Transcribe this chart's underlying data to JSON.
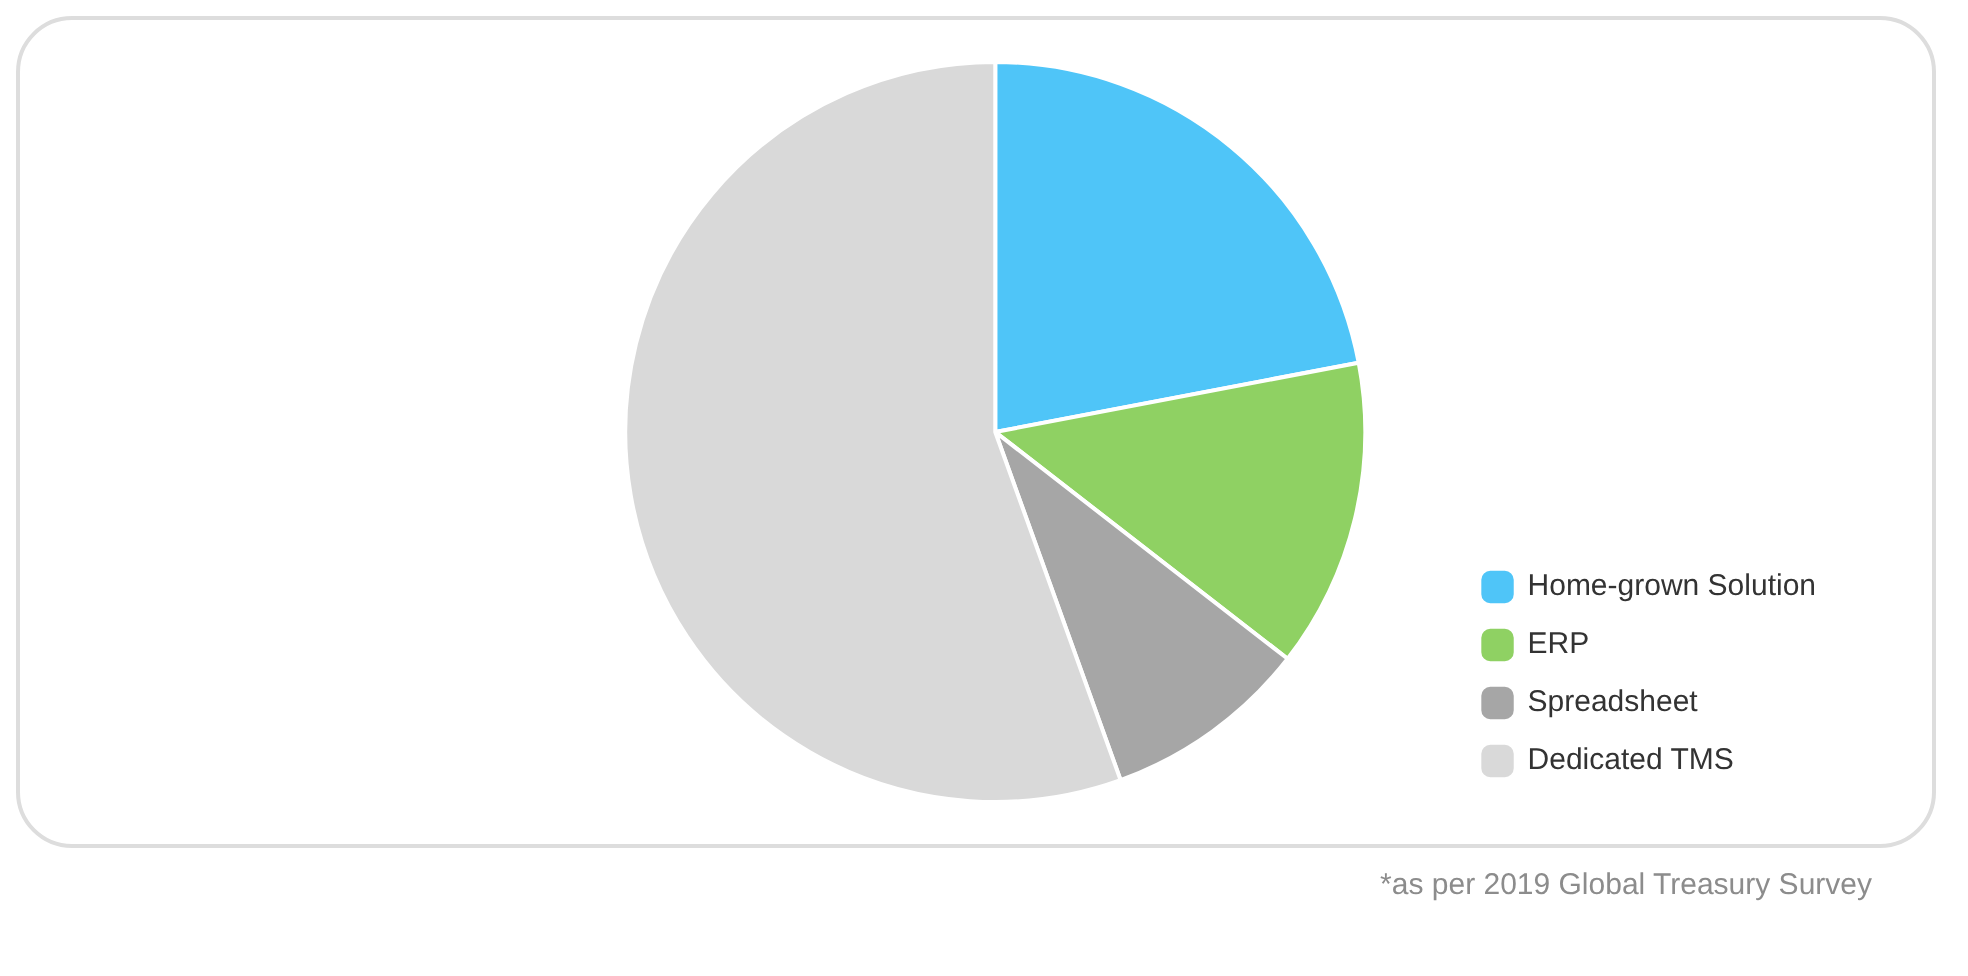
{
  "chart_data": {
    "type": "pie",
    "categories": [
      "Home-grown Solution",
      "ERP",
      "Spreadsheet",
      "Dedicated TMS"
    ],
    "values": [
      22,
      13.5,
      9,
      55.5
    ],
    "colors": [
      "#4fc5f8",
      "#8fd163",
      "#a6a6a6",
      "#d9d9d9"
    ],
    "legend": "bottom right",
    "annotations": [
      "*as per 2019 Global Treasury Survey"
    ]
  }
}
